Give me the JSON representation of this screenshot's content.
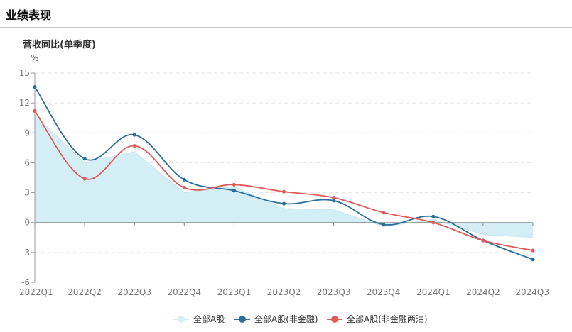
{
  "header": {
    "title": "业绩表现"
  },
  "chart_data": {
    "type": "line",
    "title": "营收同比(单季度)",
    "ylabel": "%",
    "categories": [
      "2022Q1",
      "2022Q2",
      "2022Q3",
      "2022Q4",
      "2023Q1",
      "2023Q2",
      "2023Q3",
      "2023Q4",
      "2024Q1",
      "2024Q2",
      "2024Q3"
    ],
    "ylim": [
      -6,
      15
    ],
    "yticks": [
      -6,
      -3,
      0,
      3,
      6,
      9,
      12,
      15
    ],
    "grid": true,
    "legend_position": "bottom",
    "series": [
      {
        "name": "全部A股",
        "kind": "area",
        "color": "#d4eef6",
        "line_color": "#c2e6f1",
        "values": [
          10.8,
          6.0,
          7.1,
          3.0,
          3.6,
          1.4,
          1.3,
          -0.4,
          0.3,
          -1.2,
          -1.5
        ]
      },
      {
        "name": "全部A股(非金融)",
        "kind": "line",
        "color": "#2a6f97",
        "values": [
          13.6,
          6.4,
          8.8,
          4.3,
          3.2,
          1.9,
          2.2,
          -0.2,
          0.6,
          -1.8,
          -3.7
        ]
      },
      {
        "name": "全部A股(非金融两油)",
        "kind": "line",
        "color": "#e05a5a",
        "values": [
          11.2,
          4.4,
          7.7,
          3.5,
          3.8,
          3.1,
          2.5,
          1.0,
          0.0,
          -1.8,
          -2.8
        ]
      }
    ]
  }
}
